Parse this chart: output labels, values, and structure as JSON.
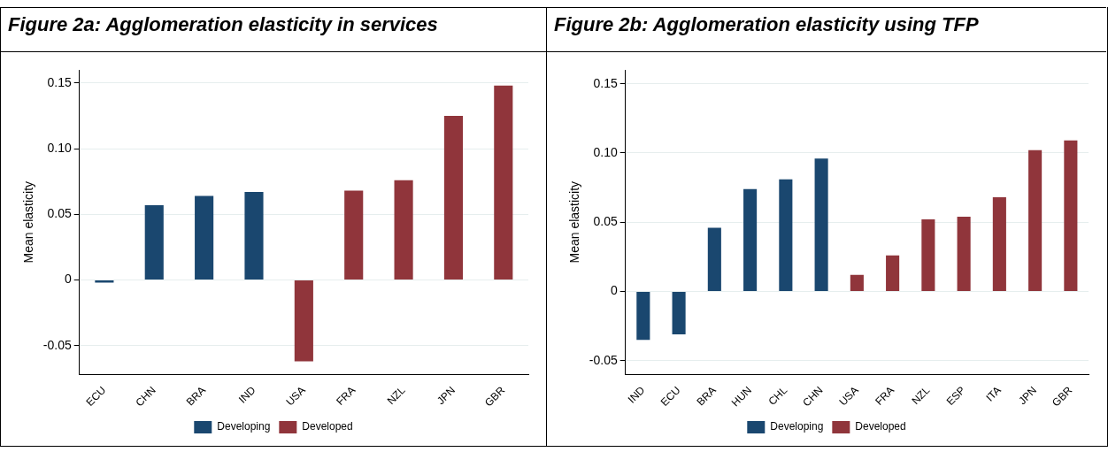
{
  "chart_data": [
    {
      "type": "bar",
      "title": "Figure 2a: Agglomeration elasticity in services",
      "ylabel": "Mean elasticity",
      "categories": [
        "ECU",
        "CHN",
        "BRA",
        "IND",
        "USA",
        "FRA",
        "NZL",
        "JPN",
        "GBR"
      ],
      "series": [
        {
          "name": "Developing",
          "color": "#1a476f",
          "values": [
            -0.002,
            0.057,
            0.064,
            0.067,
            null,
            null,
            null,
            null,
            null
          ]
        },
        {
          "name": "Developed",
          "color": "#90353b",
          "values": [
            null,
            null,
            null,
            null,
            -0.062,
            0.068,
            0.076,
            0.125,
            0.148
          ]
        }
      ],
      "ylim": [
        -0.072,
        0.16
      ],
      "yticks": [
        {
          "value": -0.05,
          "label": "-0.05"
        },
        0,
        {
          "value": 0.05,
          "label": "0.05"
        },
        {
          "value": 0.1,
          "label": "0.10"
        },
        {
          "value": 0.15,
          "label": "0.15"
        }
      ],
      "grid": "y",
      "legend": "bottom"
    },
    {
      "type": "bar",
      "title": "Figure 2b: Agglomeration elasticity using TFP",
      "ylabel": "Mean elasticity",
      "categories": [
        "IND",
        "ECU",
        "BRA",
        "HUN",
        "CHL",
        "CHN",
        "USA",
        "FRA",
        "NZL",
        "ESP",
        "ITA",
        "JPN",
        "GBR"
      ],
      "series": [
        {
          "name": "Developing",
          "color": "#1a476f",
          "values": [
            -0.035,
            -0.031,
            0.046,
            0.074,
            0.081,
            0.096,
            null,
            null,
            null,
            null,
            null,
            null,
            null
          ]
        },
        {
          "name": "Developed",
          "color": "#90353b",
          "values": [
            null,
            null,
            null,
            null,
            null,
            null,
            0.012,
            0.026,
            0.052,
            0.054,
            0.068,
            0.102,
            0.109
          ]
        }
      ],
      "ylim": [
        -0.06,
        0.16
      ],
      "yticks": [
        {
          "value": -0.05,
          "label": "-0.05"
        },
        0,
        {
          "value": 0.05,
          "label": "0.05"
        },
        {
          "value": 0.1,
          "label": "0.10"
        },
        {
          "value": 0.15,
          "label": "0.15"
        }
      ],
      "grid": "y",
      "legend": "bottom"
    }
  ]
}
